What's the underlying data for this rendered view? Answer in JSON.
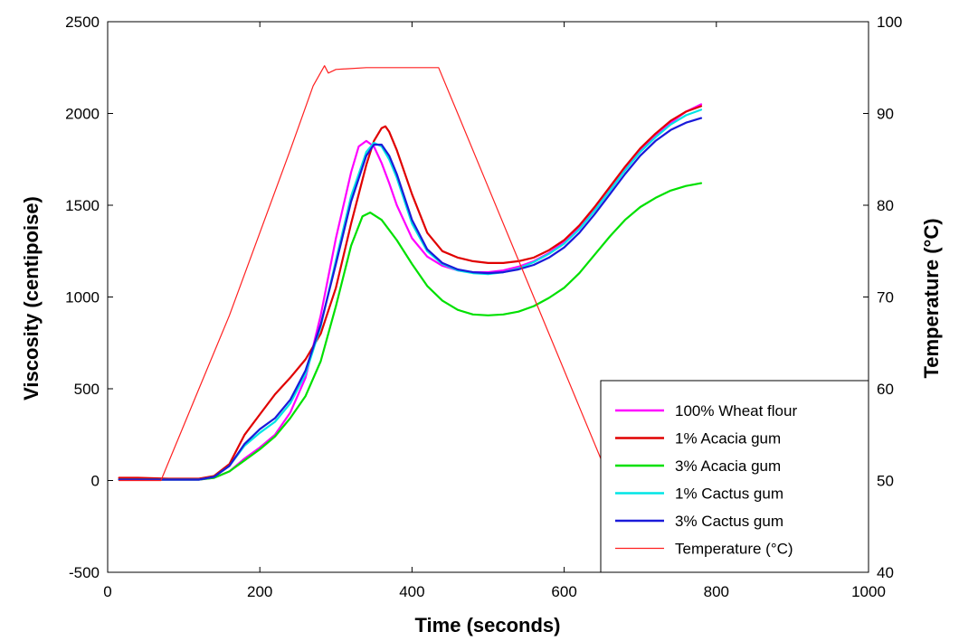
{
  "chart_data": {
    "type": "line",
    "title": "",
    "xlabel": "Time (seconds)",
    "ylabel": "Viscosity (centipoise)",
    "y2label": "Temperature (°C)",
    "xlim": [
      0,
      1000
    ],
    "ylim": [
      -500,
      2500
    ],
    "y2lim": [
      40,
      100
    ],
    "x_ticks": [
      "0",
      "200",
      "400",
      "600",
      "800",
      "1000"
    ],
    "y_ticks": [
      "-500",
      "0",
      "500",
      "1000",
      "1500",
      "2000",
      "2500"
    ],
    "y2_ticks": [
      "40",
      "50",
      "60",
      "70",
      "80",
      "90",
      "100"
    ],
    "grid": false,
    "legend_position": "bottom-right",
    "series": [
      {
        "name": "100% Wheat flour",
        "axis": "left",
        "color": "#ff00ff",
        "x": [
          15,
          40,
          80,
          120,
          140,
          160,
          180,
          200,
          220,
          240,
          260,
          280,
          300,
          320,
          330,
          340,
          350,
          360,
          370,
          380,
          400,
          420,
          440,
          460,
          480,
          500,
          520,
          540,
          560,
          580,
          600,
          620,
          640,
          660,
          680,
          700,
          720,
          740,
          760,
          780
        ],
        "y": [
          5,
          5,
          5,
          5,
          15,
          50,
          120,
          180,
          250,
          370,
          560,
          900,
          1320,
          1680,
          1820,
          1850,
          1820,
          1730,
          1620,
          1500,
          1320,
          1220,
          1170,
          1145,
          1135,
          1135,
          1145,
          1165,
          1195,
          1240,
          1300,
          1380,
          1480,
          1590,
          1700,
          1800,
          1880,
          1950,
          2010,
          2050
        ]
      },
      {
        "name": "1% Acacia gum",
        "axis": "left",
        "color": "#e00000",
        "x": [
          15,
          40,
          80,
          120,
          140,
          160,
          180,
          200,
          220,
          240,
          260,
          280,
          300,
          320,
          340,
          350,
          360,
          365,
          370,
          380,
          400,
          420,
          440,
          460,
          480,
          500,
          520,
          540,
          560,
          580,
          600,
          620,
          640,
          660,
          680,
          700,
          720,
          740,
          760,
          780
        ],
        "y": [
          15,
          15,
          10,
          10,
          25,
          90,
          250,
          360,
          470,
          560,
          660,
          800,
          1050,
          1400,
          1720,
          1850,
          1920,
          1930,
          1900,
          1800,
          1560,
          1350,
          1250,
          1215,
          1195,
          1185,
          1185,
          1195,
          1215,
          1255,
          1310,
          1390,
          1490,
          1600,
          1710,
          1810,
          1890,
          1960,
          2010,
          2040
        ]
      },
      {
        "name": "3% Acacia gum",
        "axis": "left",
        "color": "#00e000",
        "x": [
          15,
          40,
          80,
          120,
          140,
          160,
          180,
          200,
          220,
          240,
          260,
          280,
          300,
          320,
          335,
          345,
          360,
          380,
          400,
          420,
          440,
          460,
          480,
          500,
          520,
          540,
          560,
          580,
          600,
          620,
          640,
          660,
          680,
          700,
          720,
          740,
          760,
          780
        ],
        "y": [
          5,
          5,
          5,
          5,
          15,
          50,
          110,
          170,
          240,
          340,
          460,
          650,
          950,
          1280,
          1440,
          1460,
          1420,
          1310,
          1180,
          1060,
          980,
          930,
          905,
          900,
          905,
          920,
          950,
          995,
          1050,
          1130,
          1230,
          1330,
          1420,
          1490,
          1540,
          1580,
          1605,
          1620
        ]
      },
      {
        "name": "1% Cactus gum",
        "axis": "left",
        "color": "#00e5e5",
        "x": [
          15,
          40,
          80,
          120,
          140,
          160,
          180,
          200,
          220,
          240,
          260,
          280,
          300,
          320,
          340,
          350,
          360,
          370,
          380,
          400,
          420,
          440,
          460,
          480,
          500,
          520,
          540,
          560,
          580,
          600,
          620,
          640,
          660,
          680,
          700,
          720,
          740,
          760,
          780
        ],
        "y": [
          5,
          5,
          5,
          5,
          20,
          80,
          190,
          260,
          320,
          420,
          580,
          840,
          1200,
          1550,
          1790,
          1840,
          1820,
          1750,
          1650,
          1400,
          1250,
          1180,
          1145,
          1130,
          1125,
          1135,
          1155,
          1190,
          1235,
          1290,
          1370,
          1470,
          1580,
          1690,
          1790,
          1870,
          1940,
          1990,
          2020
        ]
      },
      {
        "name": "3% Cactus gum",
        "axis": "left",
        "color": "#1a1ad9",
        "x": [
          15,
          40,
          80,
          120,
          140,
          160,
          180,
          200,
          220,
          240,
          260,
          280,
          300,
          320,
          340,
          350,
          360,
          370,
          380,
          400,
          420,
          440,
          460,
          480,
          500,
          520,
          540,
          560,
          580,
          600,
          620,
          640,
          660,
          680,
          700,
          720,
          740,
          760,
          780
        ],
        "y": [
          5,
          5,
          5,
          5,
          20,
          80,
          200,
          280,
          340,
          440,
          600,
          850,
          1180,
          1520,
          1770,
          1830,
          1830,
          1770,
          1670,
          1420,
          1260,
          1185,
          1150,
          1135,
          1130,
          1135,
          1150,
          1175,
          1215,
          1270,
          1350,
          1450,
          1560,
          1670,
          1770,
          1850,
          1910,
          1950,
          1975
        ]
      },
      {
        "name": "Temperature (°C)",
        "axis": "right",
        "color": "#ff2020",
        "x": [
          15,
          70,
          120,
          160,
          200,
          240,
          270,
          285,
          290,
          300,
          340,
          380,
          420,
          435,
          460,
          500,
          540,
          580,
          620,
          660,
          700,
          720,
          740,
          760,
          780
        ],
        "y": [
          50,
          50,
          60,
          68,
          77,
          86,
          93,
          95.2,
          94.4,
          94.8,
          95.0,
          95.0,
          95.0,
          95.0,
          90,
          82,
          74,
          66,
          58,
          50,
          50,
          50,
          50,
          50,
          50
        ]
      }
    ]
  },
  "legend": {
    "entries": [
      "100% Wheat flour",
      "1% Acacia gum",
      "3% Acacia gum",
      "1% Cactus gum",
      "3% Cactus gum",
      "Temperature (°C)"
    ]
  }
}
